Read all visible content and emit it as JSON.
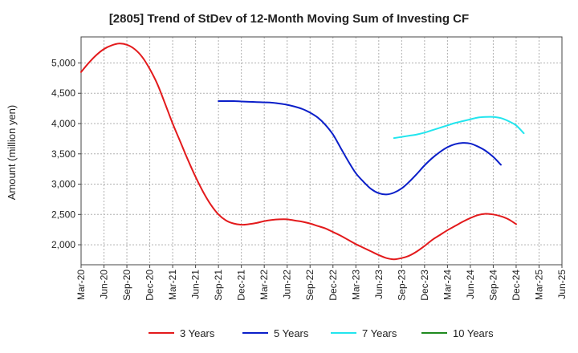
{
  "chart_data": {
    "type": "line",
    "title": "[2805]  Trend of StDev of 12-Month Moving Sum of Investing CF",
    "xlabel": "",
    "ylabel": "Amount (million yen)",
    "ylim": [
      1670,
      5430
    ],
    "yticks": [
      2000,
      2500,
      3000,
      3500,
      4000,
      4500,
      5000
    ],
    "ytick_labels": [
      "2,000",
      "2,500",
      "3,000",
      "3,500",
      "4,000",
      "4,500",
      "5,000"
    ],
    "x_tick_labels": [
      "Mar-20",
      "Jun-20",
      "Sep-20",
      "Dec-20",
      "Mar-21",
      "Jun-21",
      "Sep-21",
      "Dec-21",
      "Mar-22",
      "Jun-22",
      "Sep-22",
      "Dec-22",
      "Mar-23",
      "Jun-23",
      "Sep-23",
      "Dec-23",
      "Mar-24",
      "Jun-24",
      "Sep-24",
      "Dec-24",
      "Mar-25",
      "Jun-25"
    ],
    "grid": true,
    "legend_position": "bottom",
    "series": [
      {
        "name": "3 Years",
        "color": "#e31a1c",
        "start": "Mar-20",
        "values": [
          4850,
          5000,
          5130,
          5230,
          5290,
          5320,
          5300,
          5230,
          5100,
          4900,
          4650,
          4330,
          4000,
          3700,
          3400,
          3120,
          2870,
          2660,
          2500,
          2400,
          2350,
          2330,
          2340,
          2360,
          2390,
          2410,
          2420,
          2420,
          2400,
          2380,
          2350,
          2310,
          2270,
          2210,
          2150,
          2080,
          2010,
          1950,
          1890,
          1830,
          1780,
          1760,
          1780,
          1820,
          1890,
          1980,
          2080,
          2160,
          2240,
          2310,
          2380,
          2440,
          2490,
          2510,
          2500,
          2470,
          2420,
          2340
        ]
      },
      {
        "name": "5 Years",
        "color": "#0b1fc9",
        "start": "Sep-21",
        "values": [
          4370,
          4370,
          4370,
          4365,
          4360,
          4355,
          4350,
          4345,
          4330,
          4310,
          4280,
          4240,
          4180,
          4100,
          3980,
          3820,
          3600,
          3380,
          3180,
          3040,
          2920,
          2850,
          2830,
          2860,
          2930,
          3040,
          3170,
          3310,
          3430,
          3530,
          3610,
          3660,
          3680,
          3670,
          3620,
          3550,
          3450,
          3320
        ]
      },
      {
        "name": "7 Years",
        "color": "#22e5ee",
        "start": "Aug-23",
        "values": [
          3760,
          3780,
          3800,
          3820,
          3850,
          3890,
          3930,
          3970,
          4010,
          4040,
          4070,
          4100,
          4110,
          4110,
          4090,
          4040,
          3970,
          3840
        ]
      },
      {
        "name": "10 Years",
        "color": "#1f8a1f",
        "start": "",
        "values": []
      }
    ]
  }
}
